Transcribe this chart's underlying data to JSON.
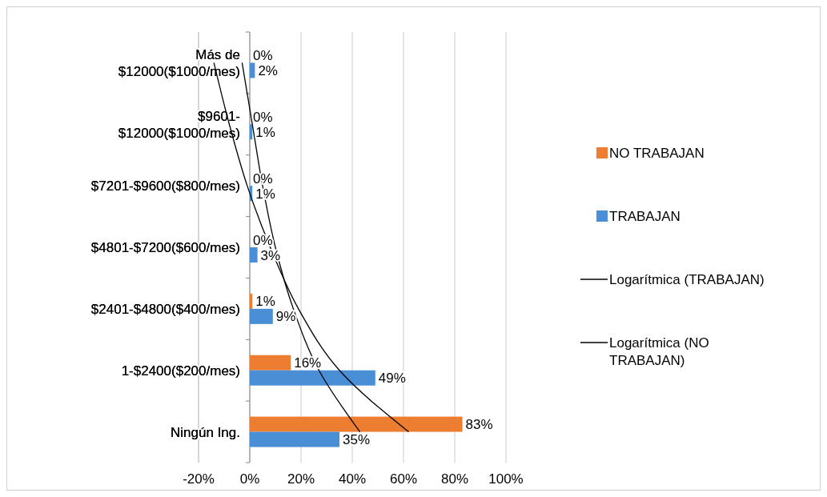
{
  "chart_data": {
    "type": "bar",
    "orientation": "horizontal",
    "categories": [
      "Más de $12000($1000/mes)",
      "$9601-$12000($1000/mes)",
      "$7201-$9600($800/mes)",
      "$4801-$7200($600/mes)",
      "$2401-$4800($400/mes)",
      "1-$2400($200/mes)",
      "Ningún Ing."
    ],
    "series": [
      {
        "name": "NO TRABAJAN",
        "color": "#ed7d31",
        "values": [
          0,
          0,
          0,
          0,
          1,
          16,
          83
        ],
        "value_labels": [
          "0%",
          "0%",
          "0%",
          "0%",
          "1%",
          "16%",
          "83%"
        ]
      },
      {
        "name": "TRABAJAN",
        "color": "#4a8fd6",
        "values": [
          2,
          1,
          1,
          3,
          9,
          49,
          35
        ],
        "value_labels": [
          "2%",
          "1%",
          "1%",
          "3%",
          "9%",
          "49%",
          "35%"
        ]
      },
      {
        "name": "Logarítmica (TRABAJAN)",
        "type": "line",
        "color": "#000000",
        "values": [
          -3,
          1,
          5,
          10,
          17,
          27,
          43
        ]
      },
      {
        "name": "Logarítmica (NO TRABAJAN)",
        "type": "line",
        "color": "#000000",
        "values": [
          -14,
          -8,
          -1,
          8,
          19,
          35,
          62
        ]
      }
    ],
    "xlim": [
      -20,
      100
    ],
    "xticks": [
      {
        "value": -20,
        "label": "-20%"
      },
      {
        "value": 0,
        "label": "0%"
      },
      {
        "value": 20,
        "label": "20%"
      },
      {
        "value": 40,
        "label": "40%"
      },
      {
        "value": 60,
        "label": "60%"
      },
      {
        "value": 80,
        "label": "80%"
      },
      {
        "value": 100,
        "label": "100%"
      }
    ],
    "grid": "x",
    "legend": "right"
  }
}
